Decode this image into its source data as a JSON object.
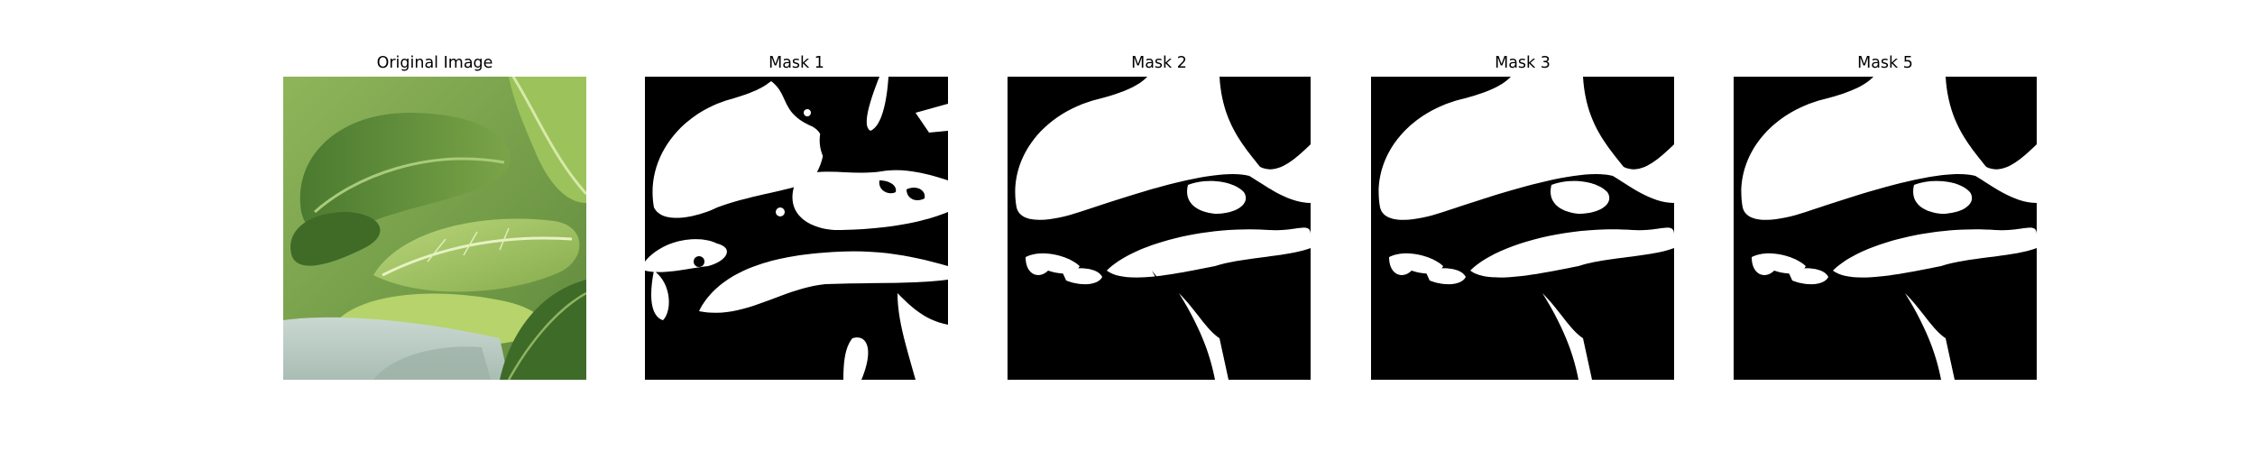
{
  "figure": {
    "panels": [
      {
        "title": "Original Image",
        "kind": "photo",
        "icon": "leaf-photo"
      },
      {
        "title": "Mask 1",
        "kind": "mask",
        "variant": "noisy"
      },
      {
        "title": "Mask 2",
        "kind": "mask",
        "variant": "clean"
      },
      {
        "title": "Mask 3",
        "kind": "mask",
        "variant": "clean"
      },
      {
        "title": "Mask 5",
        "kind": "mask",
        "variant": "clean"
      }
    ],
    "colors": {
      "mask_fg": "#ffffff",
      "mask_bg": "#000000",
      "leaf_dark": "#4f7f34",
      "leaf_mid": "#7fa84a",
      "leaf_light": "#c7dd8a",
      "surface": "#b8c9c0"
    }
  }
}
